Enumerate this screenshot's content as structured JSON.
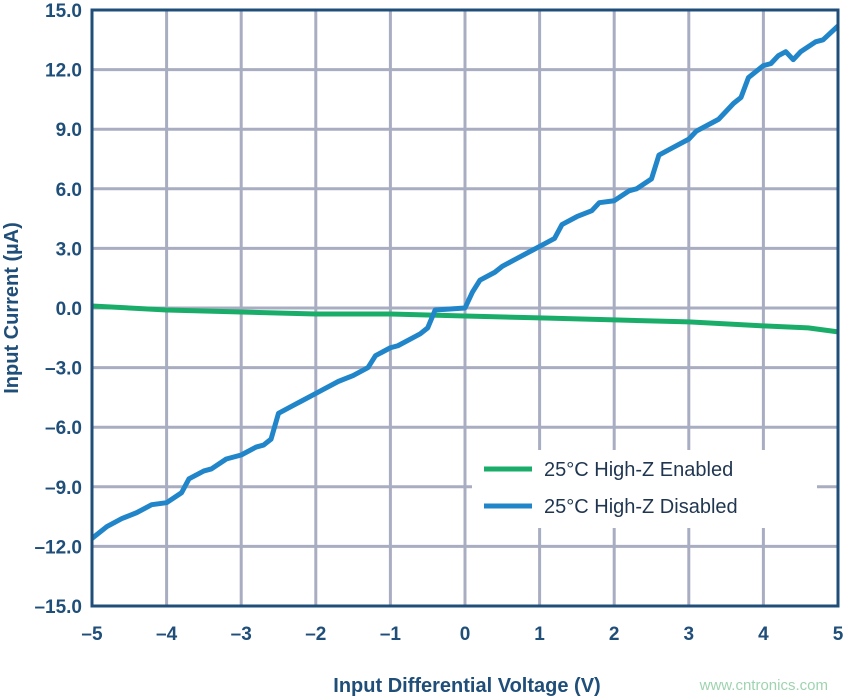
{
  "chart_data": {
    "type": "line",
    "xlabel": "Input Differential Voltage (V)",
    "ylabel": "Input Current (µA)",
    "xlim": [
      -5,
      5
    ],
    "ylim": [
      -15,
      15
    ],
    "xticks": [
      -5,
      -4,
      -3,
      -2,
      -1,
      0,
      1,
      2,
      3,
      4,
      5
    ],
    "xtick_labels": [
      "–5",
      "–4",
      "–3",
      "–2",
      "–1",
      "0",
      "1",
      "2",
      "3",
      "4",
      "5"
    ],
    "yticks": [
      15,
      12,
      9,
      6,
      3,
      0,
      -3,
      -6,
      -9,
      -12,
      -15
    ],
    "ytick_labels": [
      "15.0",
      "12.0",
      "9.0",
      "6.0",
      "3.0",
      "0.0",
      "–3.0",
      "–6.0",
      "–9.0",
      "–12.0",
      "–15.0"
    ],
    "grid": true,
    "legend_position": "bottom-right",
    "series": [
      {
        "name": "25°C High-Z Enabled",
        "color": "#1aad6a",
        "x": [
          -5,
          -4,
          -3,
          -2,
          -1,
          0,
          1,
          2,
          3,
          4,
          4.6,
          5
        ],
        "y": [
          0.1,
          -0.1,
          -0.2,
          -0.3,
          -0.3,
          -0.4,
          -0.5,
          -0.6,
          -0.7,
          -0.9,
          -1.0,
          -1.2
        ]
      },
      {
        "name": "25°C High-Z Disabled",
        "color": "#2185c9",
        "x": [
          -5,
          -4.8,
          -4.6,
          -4.4,
          -4.2,
          -4,
          -3.8,
          -3.7,
          -3.5,
          -3.4,
          -3.2,
          -3,
          -2.8,
          -2.7,
          -2.6,
          -2.5,
          -2.3,
          -2.2,
          -2,
          -1.9,
          -1.7,
          -1.5,
          -1.3,
          -1.2,
          -1,
          -0.9,
          -0.7,
          -0.6,
          -0.5,
          -0.4,
          0,
          0.1,
          0.2,
          0.4,
          0.5,
          0.7,
          0.9,
          1,
          1.2,
          1.3,
          1.5,
          1.7,
          1.8,
          2,
          2.2,
          2.3,
          2.5,
          2.6,
          2.8,
          3,
          3.1,
          3.3,
          3.4,
          3.6,
          3.7,
          3.8,
          4,
          4.1,
          4.2,
          4.3,
          4.4,
          4.5,
          4.7,
          4.8,
          5
        ],
        "y": [
          -11.6,
          -11.0,
          -10.6,
          -10.3,
          -9.9,
          -9.8,
          -9.3,
          -8.6,
          -8.2,
          -8.1,
          -7.6,
          -7.4,
          -7.0,
          -6.9,
          -6.6,
          -5.3,
          -4.9,
          -4.7,
          -4.3,
          -4.1,
          -3.7,
          -3.4,
          -3.0,
          -2.4,
          -2.0,
          -1.9,
          -1.5,
          -1.3,
          -1.0,
          -0.1,
          0.0,
          0.8,
          1.4,
          1.8,
          2.1,
          2.5,
          2.9,
          3.1,
          3.5,
          4.2,
          4.6,
          4.9,
          5.3,
          5.4,
          5.9,
          6.0,
          6.5,
          7.7,
          8.1,
          8.5,
          8.9,
          9.3,
          9.5,
          10.3,
          10.6,
          11.6,
          12.2,
          12.3,
          12.7,
          12.9,
          12.5,
          12.9,
          13.4,
          13.5,
          14.2
        ]
      }
    ]
  },
  "watermark": "www.cntronics.com"
}
